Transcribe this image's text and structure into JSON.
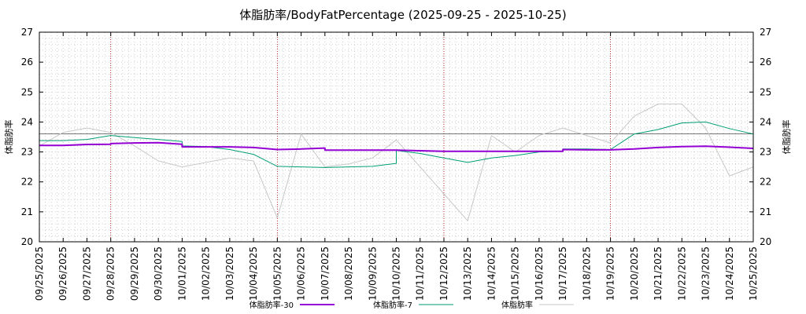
{
  "chart_data": {
    "type": "line",
    "title": "体脂肪率/BodyFatPercentage (2025-09-25 - 2025-10-25)",
    "ylabel": "体脂肪率",
    "y2label": "体脂肪率",
    "xlabel": "",
    "ylim": [
      20,
      27
    ],
    "yticks": [
      20,
      21,
      22,
      23,
      24,
      25,
      26,
      27
    ],
    "x_tick_labels": [
      "09/25/2025",
      "09/26/2025",
      "09/27/2025",
      "09/28/2025",
      "09/29/2025",
      "09/30/2025",
      "10/01/2025",
      "10/02/2025",
      "10/03/2025",
      "10/04/2025",
      "10/05/2025",
      "10/06/2025",
      "10/07/2025",
      "10/08/2025",
      "10/09/2025",
      "10/10/2025",
      "10/11/2025",
      "10/12/2025",
      "10/13/2025",
      "10/14/2025",
      "10/15/2025",
      "10/16/2025",
      "10/17/2025",
      "10/18/2025",
      "10/19/2025",
      "10/20/2025",
      "10/21/2025",
      "10/22/2025",
      "10/23/2025",
      "10/24/2025",
      "10/25/2025"
    ],
    "week_marker_indices": [
      3,
      10,
      17,
      24
    ],
    "reference_line": 23.6,
    "grid": true,
    "legend_position": "bottom",
    "series": [
      {
        "name": "体脂肪率-30",
        "color": "#9400d3",
        "width": 2,
        "x": [
          0,
          1,
          2,
          3,
          3,
          4,
          5,
          6,
          6,
          7,
          8,
          9,
          10,
          11,
          12,
          12,
          13,
          14,
          15,
          16,
          17,
          18,
          19,
          20,
          21,
          22,
          22,
          23,
          24,
          25,
          26,
          27,
          28,
          29,
          30
        ],
        "values": [
          23.22,
          23.22,
          23.25,
          23.26,
          23.28,
          23.3,
          23.31,
          23.26,
          23.17,
          23.17,
          23.17,
          23.15,
          23.08,
          23.1,
          23.13,
          23.06,
          23.06,
          23.06,
          23.06,
          23.04,
          23.02,
          23.02,
          23.02,
          23.02,
          23.02,
          23.02,
          23.08,
          23.07,
          23.07,
          23.1,
          23.15,
          23.18,
          23.19,
          23.16,
          23.12
        ]
      },
      {
        "name": "体脂肪率-7",
        "color": "#009e73",
        "width": 1,
        "x": [
          0,
          1,
          2,
          3,
          4,
          5,
          6,
          6,
          7,
          8,
          9,
          10,
          11,
          12,
          13,
          14,
          15,
          15,
          16,
          17,
          18,
          19,
          20,
          21,
          22,
          22,
          23,
          24,
          25,
          26,
          27,
          28,
          29,
          30
        ],
        "values": [
          23.38,
          23.38,
          23.42,
          23.55,
          23.48,
          23.42,
          23.35,
          23.2,
          23.18,
          23.08,
          22.92,
          22.52,
          22.5,
          22.48,
          22.5,
          22.52,
          22.62,
          23.05,
          22.95,
          22.8,
          22.65,
          22.8,
          22.88,
          23.0,
          23.02,
          23.1,
          23.1,
          23.08,
          23.6,
          23.75,
          23.97,
          24.0,
          23.78,
          23.6
        ]
      },
      {
        "name": "体脂肪率",
        "color": "#c8c8c8",
        "width": 1,
        "x": [
          0,
          1,
          2,
          3,
          4,
          5,
          6,
          7,
          8,
          9,
          10,
          11,
          12,
          13,
          14,
          15,
          16,
          17,
          18,
          19,
          20,
          21,
          22,
          23,
          24,
          25,
          26,
          27,
          28,
          29,
          30
        ],
        "values": [
          23.2,
          23.65,
          23.8,
          23.65,
          23.2,
          22.7,
          22.5,
          22.65,
          22.8,
          22.7,
          20.8,
          23.6,
          22.5,
          22.6,
          22.8,
          23.4,
          22.5,
          21.6,
          20.7,
          23.55,
          23.0,
          23.55,
          23.8,
          23.55,
          23.3,
          24.2,
          24.6,
          24.6,
          23.8,
          22.2,
          22.5
        ]
      }
    ]
  }
}
